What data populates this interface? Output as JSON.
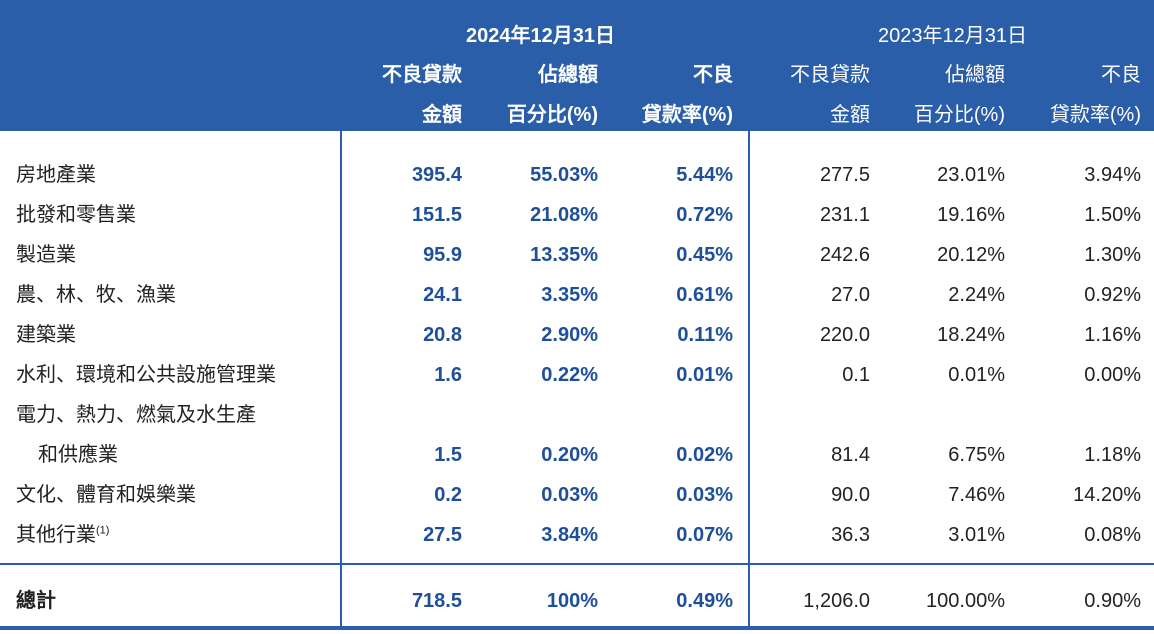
{
  "header": {
    "year_current": "2024年12月31日",
    "year_previous": "2023年12月31日",
    "columns": [
      {
        "line1": "不良貸款",
        "line2": "金額"
      },
      {
        "line1": "佔總額",
        "line2": "百分比(%)"
      },
      {
        "line1": "不良",
        "line2": "貸款率(%)"
      },
      {
        "line1": "不良貸款",
        "line2": "金額"
      },
      {
        "line1": "佔總額",
        "line2": "百分比(%)"
      },
      {
        "line1": "不良",
        "line2": "貸款率(%)"
      }
    ]
  },
  "rows": [
    {
      "label": "房地產業",
      "c1": "395.4",
      "c2": "55.03%",
      "c3": "5.44%",
      "p1": "277.5",
      "p2": "23.01%",
      "p3": "3.94%"
    },
    {
      "label": "批發和零售業",
      "c1": "151.5",
      "c2": "21.08%",
      "c3": "0.72%",
      "p1": "231.1",
      "p2": "19.16%",
      "p3": "1.50%"
    },
    {
      "label": "製造業",
      "c1": "95.9",
      "c2": "13.35%",
      "c3": "0.45%",
      "p1": "242.6",
      "p2": "20.12%",
      "p3": "1.30%"
    },
    {
      "label": "農、林、牧、漁業",
      "c1": "24.1",
      "c2": "3.35%",
      "c3": "0.61%",
      "p1": "27.0",
      "p2": "2.24%",
      "p3": "0.92%"
    },
    {
      "label": "建築業",
      "c1": "20.8",
      "c2": "2.90%",
      "c3": "0.11%",
      "p1": "220.0",
      "p2": "18.24%",
      "p3": "1.16%"
    },
    {
      "label": "水利、環境和公共設施管理業",
      "c1": "1.6",
      "c2": "0.22%",
      "c3": "0.01%",
      "p1": "0.1",
      "p2": "0.01%",
      "p3": "0.00%"
    },
    {
      "label": "電力、熱力、燃氣及水生產",
      "c1": "",
      "c2": "",
      "c3": "",
      "p1": "",
      "p2": "",
      "p3": ""
    },
    {
      "label": "和供應業",
      "c1": "1.5",
      "c2": "0.20%",
      "c3": "0.02%",
      "p1": "81.4",
      "p2": "6.75%",
      "p3": "1.18%"
    },
    {
      "label": "文化、體育和娛樂業",
      "c1": "0.2",
      "c2": "0.03%",
      "c3": "0.03%",
      "p1": "90.0",
      "p2": "7.46%",
      "p3": "14.20%"
    },
    {
      "label": "其他行業",
      "c1": "27.5",
      "c2": "3.84%",
      "c3": "0.07%",
      "p1": "36.3",
      "p2": "3.01%",
      "p3": "0.08%"
    }
  ],
  "footnote_marker": "(1)",
  "total": {
    "label": "總計",
    "c1": "718.5",
    "c2": "100%",
    "c3": "0.49%",
    "p1": "1,206.0",
    "p2": "100.00%",
    "p3": "0.90%"
  },
  "colors": {
    "header_bg": "#2a5ea8",
    "current_value_text": "#1e4f9a"
  }
}
